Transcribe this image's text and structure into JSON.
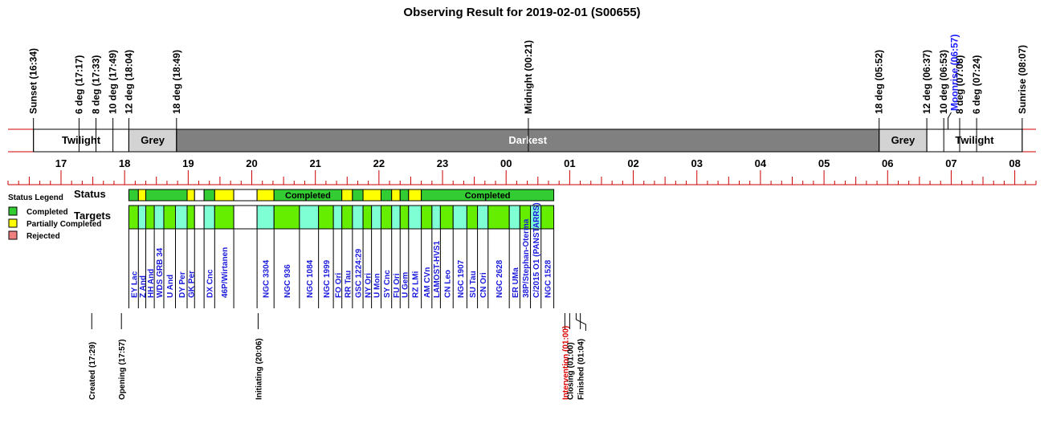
{
  "title": "Observing Result for 2019-02-01 (S00655)",
  "chart_data": {
    "type": "timeline",
    "title": "Observing Result for 2019-02-01 (S00655)",
    "time_range": [
      "16:10",
      "08:20"
    ],
    "hour_ticks": [
      "17",
      "18",
      "19",
      "20",
      "21",
      "22",
      "23",
      "00",
      "01",
      "02",
      "03",
      "04",
      "05",
      "06",
      "07",
      "08"
    ],
    "sun_events": [
      {
        "label": "Sunset (16:34)",
        "time": "16:34"
      },
      {
        "label": "6 deg (17:17)",
        "time": "17:17"
      },
      {
        "label": "8 deg (17:33)",
        "time": "17:33"
      },
      {
        "label": "10 deg (17:49)",
        "time": "17:49"
      },
      {
        "label": "12 deg (18:04)",
        "time": "18:04"
      },
      {
        "label": "18 deg (18:49)",
        "time": "18:49"
      },
      {
        "label": "Midnight (00:21)",
        "time": "00:21"
      },
      {
        "label": "18 deg (05:52)",
        "time": "05:52"
      },
      {
        "label": "12 deg (06:37)",
        "time": "06:37"
      },
      {
        "label": "10 deg (06:53)",
        "time": "06:53"
      },
      {
        "label": "8 deg (07:08)",
        "time": "07:08"
      },
      {
        "label": "6 deg (07:24)",
        "time": "07:24"
      },
      {
        "label": "Sunrise (08:07)",
        "time": "08:07"
      }
    ],
    "moon_event": {
      "label": "Moonrise (06:57)",
      "time": "06:57",
      "color": "#1a1aff"
    },
    "sky_periods": [
      {
        "label": "Twilight",
        "start": "16:34",
        "end": "18:04",
        "color": "#ffffff"
      },
      {
        "label": "Grey",
        "start": "18:04",
        "end": "18:49",
        "color": "#d3d3d3"
      },
      {
        "label": "Darkest",
        "start": "18:49",
        "end": "05:52",
        "color": "#808080"
      },
      {
        "label": "Grey",
        "start": "05:52",
        "end": "06:37",
        "color": "#d3d3d3"
      },
      {
        "label": "Twilight",
        "start": "06:37",
        "end": "08:07",
        "color": "#ffffff"
      }
    ],
    "status_label": "Status",
    "targets_label": "Targets",
    "status_colors": {
      "Completed": "#33cc33",
      "Partially Completed": "#ffff00",
      "Rejected": "#f08080",
      "Blank": "#ffffff"
    },
    "target_colors": {
      "a": "#66ee00",
      "b": "#7fffd4",
      "Blank": "#ffffff"
    },
    "status_segments": [
      {
        "start": "18:04",
        "end": "18:13",
        "status": "Completed"
      },
      {
        "start": "18:13",
        "end": "18:20",
        "status": "Partially Completed"
      },
      {
        "start": "18:20",
        "end": "18:59",
        "status": "Completed"
      },
      {
        "start": "18:59",
        "end": "19:06",
        "status": "Partially Completed"
      },
      {
        "start": "19:06",
        "end": "19:15",
        "status": "Blank"
      },
      {
        "start": "19:15",
        "end": "19:25",
        "status": "Completed"
      },
      {
        "start": "19:25",
        "end": "19:43",
        "status": "Partially Completed"
      },
      {
        "start": "19:43",
        "end": "20:05",
        "status": "Blank"
      },
      {
        "start": "20:05",
        "end": "20:21",
        "status": "Partially Completed"
      },
      {
        "start": "20:21",
        "end": "21:25",
        "status": "Completed",
        "label": "Completed"
      },
      {
        "start": "21:25",
        "end": "21:35",
        "status": "Partially Completed"
      },
      {
        "start": "21:35",
        "end": "21:45",
        "status": "Completed"
      },
      {
        "start": "21:45",
        "end": "22:02",
        "status": "Partially Completed"
      },
      {
        "start": "22:02",
        "end": "22:12",
        "status": "Completed"
      },
      {
        "start": "22:12",
        "end": "22:20",
        "status": "Partially Completed"
      },
      {
        "start": "22:20",
        "end": "22:28",
        "status": "Completed"
      },
      {
        "start": "22:28",
        "end": "22:40",
        "status": "Partially Completed"
      },
      {
        "start": "22:40",
        "end": "00:45",
        "status": "Completed",
        "label": "Completed"
      }
    ],
    "targets": [
      {
        "name": "EY Lac",
        "start": "18:04",
        "end": "18:13"
      },
      {
        "name": "Z And",
        "start": "18:13",
        "end": "18:20"
      },
      {
        "name": "HH And",
        "start": "18:20",
        "end": "18:28"
      },
      {
        "name": "WDS GRB 34",
        "start": "18:28",
        "end": "18:37"
      },
      {
        "name": "U And",
        "start": "18:37",
        "end": "18:48"
      },
      {
        "name": "DY Per",
        "start": "18:48",
        "end": "18:59"
      },
      {
        "name": "GK Per",
        "start": "18:59",
        "end": "19:06"
      },
      {
        "name": "",
        "start": "19:06",
        "end": "19:15"
      },
      {
        "name": "DX Cnc",
        "start": "19:15",
        "end": "19:25"
      },
      {
        "name": "46P/Wirtanen",
        "start": "19:25",
        "end": "19:43"
      },
      {
        "name": "",
        "start": "19:43",
        "end": "20:05"
      },
      {
        "name": "NGC 3304",
        "start": "20:05",
        "end": "20:21"
      },
      {
        "name": "NGC 936",
        "start": "20:21",
        "end": "20:45"
      },
      {
        "name": "NGC 1084",
        "start": "20:45",
        "end": "21:03"
      },
      {
        "name": "NGC 1999",
        "start": "21:03",
        "end": "21:17"
      },
      {
        "name": "FO Ori",
        "start": "21:17",
        "end": "21:25"
      },
      {
        "name": "RR Tau",
        "start": "21:25",
        "end": "21:35"
      },
      {
        "name": "GSC 1224:29",
        "start": "21:35",
        "end": "21:45"
      },
      {
        "name": "NY Ori",
        "start": "21:45",
        "end": "21:53"
      },
      {
        "name": "U Mon",
        "start": "21:53",
        "end": "22:02"
      },
      {
        "name": "SY Cnc",
        "start": "22:02",
        "end": "22:12"
      },
      {
        "name": "FU Ori",
        "start": "22:12",
        "end": "22:20"
      },
      {
        "name": "U Gem",
        "start": "22:20",
        "end": "22:28"
      },
      {
        "name": "RZ LMi",
        "start": "22:28",
        "end": "22:40"
      },
      {
        "name": "AM CVn",
        "start": "22:40",
        "end": "22:50"
      },
      {
        "name": "LAMOST-HVS1",
        "start": "22:50",
        "end": "22:58"
      },
      {
        "name": "CN Leo",
        "start": "22:58",
        "end": "23:10"
      },
      {
        "name": "NGC 1907",
        "start": "23:10",
        "end": "23:23"
      },
      {
        "name": "SU Tau",
        "start": "23:23",
        "end": "23:33"
      },
      {
        "name": "CN Ori",
        "start": "23:33",
        "end": "23:43"
      },
      {
        "name": "NGC 2628",
        "start": "23:43",
        "end": "00:03"
      },
      {
        "name": "ER UMa",
        "start": "00:03",
        "end": "00:13"
      },
      {
        "name": "38P/Stephan-Oterma",
        "start": "00:13",
        "end": "00:23"
      },
      {
        "name": "C/2015 O1 (PANSTARRS)",
        "start": "00:23",
        "end": "00:33"
      },
      {
        "name": "NGC 1528",
        "start": "00:33",
        "end": "00:45"
      }
    ],
    "session_events": [
      {
        "label": "Created (17:29)",
        "time": "17:29",
        "color": "#000000"
      },
      {
        "label": "Opening (17:57)",
        "time": "17:57",
        "color": "#000000"
      },
      {
        "label": "Initiating (20:06)",
        "time": "20:06",
        "color": "#000000"
      },
      {
        "label": "Intervention (01:00)",
        "time": "01:00",
        "color": "#dd0000"
      },
      {
        "label": "Closing (01:00)",
        "time": "01:00",
        "color": "#000000"
      },
      {
        "label": "Finished (01:04)",
        "time": "01:04",
        "color": "#000000"
      }
    ],
    "legend": {
      "title": "Status Legend",
      "position": "left",
      "items": [
        {
          "label": "Completed",
          "color": "#33cc33"
        },
        {
          "label": "Partially Completed",
          "color": "#ffff00"
        },
        {
          "label": "Rejected",
          "color": "#f08080"
        }
      ]
    }
  }
}
